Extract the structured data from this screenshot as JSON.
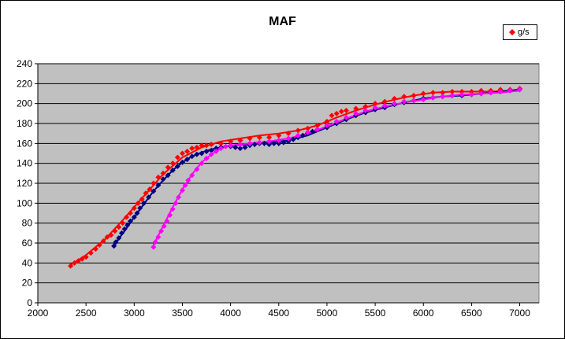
{
  "chart_data": {
    "type": "scatter",
    "title": "MAF",
    "xlabel": "",
    "ylabel": "",
    "xlim": [
      2000,
      7200
    ],
    "ylim": [
      0,
      240
    ],
    "xticks": [
      2000,
      2500,
      3000,
      3500,
      4000,
      4500,
      5000,
      5500,
      6000,
      6500,
      7000
    ],
    "yticks": [
      0,
      20,
      40,
      60,
      80,
      100,
      120,
      140,
      160,
      180,
      200,
      220,
      240
    ],
    "grid": "horizontal",
    "legend_position": "top-right",
    "plot_background": "#c0c0c0",
    "series": [
      {
        "name": "g/s",
        "color": "#ff0000",
        "marker": "diamond",
        "points": [
          [
            2340,
            37
          ],
          [
            2380,
            40
          ],
          [
            2420,
            42
          ],
          [
            2460,
            44
          ],
          [
            2500,
            46
          ],
          [
            2550,
            50
          ],
          [
            2600,
            54
          ],
          [
            2640,
            58
          ],
          [
            2680,
            62
          ],
          [
            2720,
            66
          ],
          [
            2760,
            68
          ],
          [
            2800,
            72
          ],
          [
            2840,
            76
          ],
          [
            2880,
            80
          ],
          [
            2920,
            86
          ],
          [
            2960,
            90
          ],
          [
            3000,
            95
          ],
          [
            3040,
            100
          ],
          [
            3080,
            104
          ],
          [
            3120,
            110
          ],
          [
            3160,
            114
          ],
          [
            3200,
            120
          ],
          [
            3250,
            126
          ],
          [
            3300,
            130
          ],
          [
            3350,
            136
          ],
          [
            3400,
            140
          ],
          [
            3450,
            146
          ],
          [
            3500,
            150
          ],
          [
            3550,
            152
          ],
          [
            3600,
            155
          ],
          [
            3650,
            156
          ],
          [
            3700,
            158
          ],
          [
            3750,
            158
          ],
          [
            3800,
            159
          ],
          [
            3900,
            160
          ],
          [
            4000,
            162
          ],
          [
            4100,
            163
          ],
          [
            4200,
            165
          ],
          [
            4300,
            166
          ],
          [
            4400,
            166
          ],
          [
            4500,
            168
          ],
          [
            4600,
            170
          ],
          [
            4700,
            173
          ],
          [
            4800,
            175
          ],
          [
            4900,
            178
          ],
          [
            5000,
            182
          ],
          [
            5050,
            188
          ],
          [
            5100,
            190
          ],
          [
            5150,
            192
          ],
          [
            5200,
            193
          ],
          [
            5300,
            195
          ],
          [
            5400,
            197
          ],
          [
            5500,
            200
          ],
          [
            5600,
            202
          ],
          [
            5700,
            205
          ],
          [
            5800,
            207
          ],
          [
            5900,
            208
          ],
          [
            6000,
            210
          ],
          [
            6100,
            211
          ],
          [
            6200,
            211
          ],
          [
            6300,
            212
          ],
          [
            6400,
            212
          ],
          [
            6500,
            212
          ],
          [
            6600,
            213
          ],
          [
            6700,
            213
          ],
          [
            6800,
            214
          ],
          [
            6900,
            214
          ],
          [
            7000,
            215
          ]
        ],
        "trend": [
          [
            2340,
            38
          ],
          [
            2500,
            48
          ],
          [
            2700,
            64
          ],
          [
            2900,
            85
          ],
          [
            3100,
            107
          ],
          [
            3300,
            129
          ],
          [
            3500,
            146
          ],
          [
            3700,
            156
          ],
          [
            3900,
            162
          ],
          [
            4100,
            165
          ],
          [
            4300,
            168
          ],
          [
            4500,
            170
          ],
          [
            4700,
            173
          ],
          [
            4900,
            178
          ],
          [
            5100,
            186
          ],
          [
            5300,
            193
          ],
          [
            5500,
            199
          ],
          [
            5700,
            204
          ],
          [
            5900,
            208
          ],
          [
            6100,
            211
          ],
          [
            6300,
            212
          ],
          [
            6500,
            212
          ],
          [
            6700,
            212
          ],
          [
            6900,
            213
          ],
          [
            7000,
            214
          ]
        ]
      },
      {
        "name": "",
        "color": "#000080",
        "marker": "diamond",
        "points": [
          [
            2790,
            57
          ],
          [
            2810,
            61
          ],
          [
            2840,
            65
          ],
          [
            2870,
            70
          ],
          [
            2900,
            74
          ],
          [
            2930,
            78
          ],
          [
            2960,
            82
          ],
          [
            3000,
            86
          ],
          [
            3030,
            90
          ],
          [
            3060,
            95
          ],
          [
            3100,
            100
          ],
          [
            3150,
            106
          ],
          [
            3200,
            112
          ],
          [
            3250,
            118
          ],
          [
            3300,
            124
          ],
          [
            3350,
            128
          ],
          [
            3400,
            133
          ],
          [
            3450,
            137
          ],
          [
            3500,
            141
          ],
          [
            3550,
            144
          ],
          [
            3600,
            147
          ],
          [
            3650,
            149
          ],
          [
            3700,
            150
          ],
          [
            3750,
            152
          ],
          [
            3800,
            153
          ],
          [
            3850,
            155
          ],
          [
            3900,
            156
          ],
          [
            4000,
            157
          ],
          [
            4050,
            156
          ],
          [
            4100,
            155
          ],
          [
            4150,
            156
          ],
          [
            4200,
            158
          ],
          [
            4250,
            159
          ],
          [
            4300,
            160
          ],
          [
            4350,
            160
          ],
          [
            4400,
            159
          ],
          [
            4450,
            160
          ],
          [
            4500,
            160
          ],
          [
            4550,
            161
          ],
          [
            4600,
            162
          ],
          [
            4650,
            164
          ],
          [
            4700,
            166
          ],
          [
            4750,
            168
          ],
          [
            4800,
            170
          ],
          [
            4850,
            172
          ],
          [
            4900,
            174
          ],
          [
            5000,
            176
          ],
          [
            5100,
            180
          ],
          [
            5200,
            184
          ],
          [
            5300,
            188
          ],
          [
            5400,
            191
          ],
          [
            5500,
            194
          ],
          [
            5600,
            196
          ],
          [
            5700,
            199
          ],
          [
            5800,
            201
          ],
          [
            5900,
            203
          ],
          [
            6000,
            205
          ],
          [
            6100,
            206
          ],
          [
            6200,
            207
          ],
          [
            6300,
            208
          ],
          [
            6400,
            208
          ],
          [
            6500,
            209
          ],
          [
            6600,
            210
          ],
          [
            6700,
            211
          ],
          [
            6800,
            212
          ],
          [
            6900,
            213
          ],
          [
            7000,
            214
          ]
        ],
        "trend": [
          [
            2790,
            58
          ],
          [
            2900,
            72
          ],
          [
            3000,
            86
          ],
          [
            3100,
            99
          ],
          [
            3200,
            112
          ],
          [
            3300,
            123
          ],
          [
            3400,
            133
          ],
          [
            3500,
            141
          ],
          [
            3600,
            147
          ],
          [
            3700,
            151
          ],
          [
            3800,
            154
          ],
          [
            3900,
            156
          ],
          [
            4000,
            158
          ],
          [
            4200,
            159
          ],
          [
            4400,
            161
          ],
          [
            4600,
            163
          ],
          [
            4800,
            168
          ],
          [
            5000,
            176
          ],
          [
            5200,
            184
          ],
          [
            5400,
            191
          ],
          [
            5600,
            196
          ],
          [
            5800,
            201
          ],
          [
            6000,
            205
          ],
          [
            6200,
            207
          ],
          [
            6400,
            208
          ],
          [
            6600,
            210
          ],
          [
            6800,
            212
          ],
          [
            7000,
            214
          ]
        ]
      },
      {
        "name": "",
        "color": "#ff00ff",
        "marker": "diamond",
        "points": [
          [
            3200,
            56
          ],
          [
            3220,
            61
          ],
          [
            3250,
            66
          ],
          [
            3280,
            72
          ],
          [
            3310,
            77
          ],
          [
            3340,
            82
          ],
          [
            3370,
            88
          ],
          [
            3400,
            94
          ],
          [
            3430,
            100
          ],
          [
            3460,
            106
          ],
          [
            3500,
            113
          ],
          [
            3530,
            118
          ],
          [
            3560,
            123
          ],
          [
            3600,
            128
          ],
          [
            3650,
            134
          ],
          [
            3700,
            140
          ],
          [
            3750,
            145
          ],
          [
            3800,
            149
          ],
          [
            3850,
            152
          ],
          [
            3900,
            155
          ],
          [
            3950,
            157
          ],
          [
            4000,
            158
          ],
          [
            4100,
            159
          ],
          [
            4200,
            160
          ],
          [
            4300,
            161
          ],
          [
            4400,
            162
          ],
          [
            4500,
            163
          ],
          [
            4600,
            165
          ],
          [
            4700,
            168
          ],
          [
            4800,
            171
          ],
          [
            4900,
            174
          ],
          [
            5000,
            178
          ],
          [
            5100,
            182
          ],
          [
            5200,
            186
          ],
          [
            5300,
            190
          ],
          [
            5400,
            193
          ],
          [
            5500,
            196
          ],
          [
            5600,
            198
          ],
          [
            5700,
            200
          ],
          [
            5800,
            202
          ],
          [
            5900,
            203
          ],
          [
            6000,
            204
          ],
          [
            6100,
            206
          ],
          [
            6200,
            207
          ],
          [
            6300,
            208
          ],
          [
            6400,
            209
          ],
          [
            6500,
            209
          ],
          [
            6600,
            210
          ],
          [
            6700,
            211
          ],
          [
            6800,
            212
          ],
          [
            6900,
            213
          ],
          [
            7000,
            214
          ]
        ],
        "trend": [
          [
            3200,
            58
          ],
          [
            3300,
            77
          ],
          [
            3400,
            96
          ],
          [
            3500,
            114
          ],
          [
            3600,
            129
          ],
          [
            3700,
            141
          ],
          [
            3800,
            149
          ],
          [
            3900,
            155
          ],
          [
            4000,
            158
          ],
          [
            4200,
            160
          ],
          [
            4400,
            162
          ],
          [
            4600,
            165
          ],
          [
            4800,
            170
          ],
          [
            5000,
            177
          ],
          [
            5200,
            185
          ],
          [
            5400,
            192
          ],
          [
            5600,
            197
          ],
          [
            5800,
            201
          ],
          [
            6000,
            204
          ],
          [
            6200,
            207
          ],
          [
            6400,
            209
          ],
          [
            6600,
            210
          ],
          [
            6800,
            211
          ],
          [
            7000,
            213
          ]
        ]
      }
    ]
  }
}
